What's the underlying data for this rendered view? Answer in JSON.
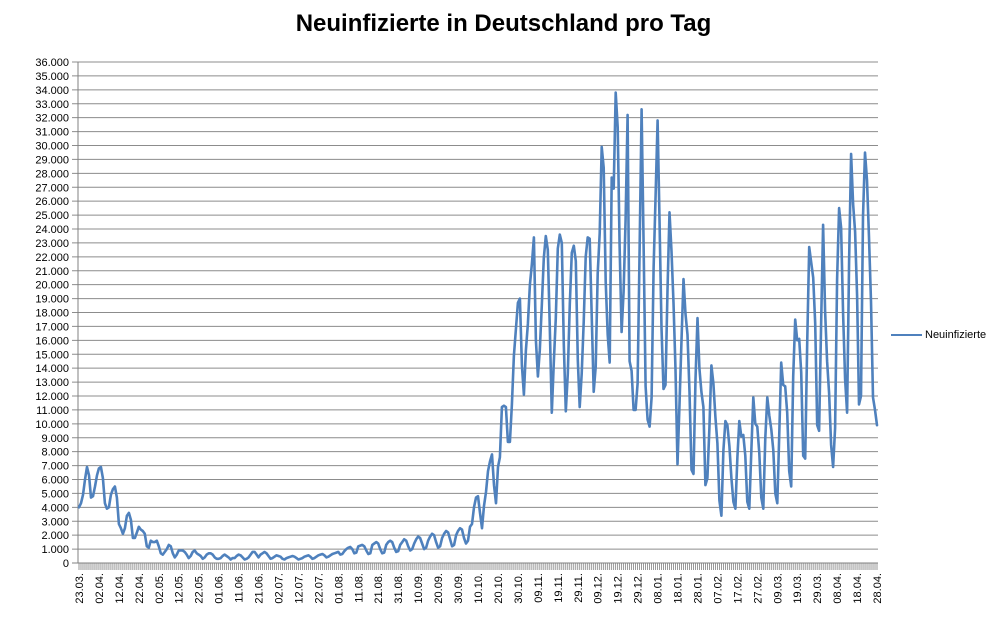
{
  "chart_data": {
    "type": "line",
    "title": "Neuinfizierte in Deutschland pro Tag",
    "legend_position": "right",
    "grid": true,
    "x_label_every": 10,
    "x_tick_labels": [
      "23.03.",
      "02.04.",
      "12.04.",
      "22.04.",
      "02.05.",
      "12.05.",
      "22.05.",
      "01.06.",
      "11.06.",
      "21.06.",
      "02.07.",
      "12.07.",
      "22.07.",
      "01.08.",
      "11.08.",
      "21.08.",
      "31.08.",
      "10.09.",
      "20.09.",
      "30.09.",
      "10.10.",
      "20.10.",
      "30.10.",
      "09.11.",
      "19.11.",
      "29.11.",
      "09.12.",
      "19.12.",
      "29.12.",
      "08.01.",
      "18.01.",
      "28.01.",
      "07.02.",
      "17.02.",
      "27.02.",
      "09.03.",
      "19.03.",
      "29.03.",
      "08.04.",
      "18.04.",
      "28.04."
    ],
    "y_axis": {
      "min": 0,
      "max": 36000,
      "step": 1000
    },
    "y_tick_labels": [
      "0",
      "1.000",
      "2.000",
      "3.000",
      "4.000",
      "5.000",
      "6.000",
      "7.000",
      "8.000",
      "9.000",
      "10.000",
      "11.000",
      "12.000",
      "13.000",
      "14.000",
      "15.000",
      "16.000",
      "17.000",
      "18.000",
      "19.000",
      "20.000",
      "21.000",
      "22.000",
      "23.000",
      "24.000",
      "25.000",
      "26.000",
      "27.000",
      "28.000",
      "29.000",
      "30.000",
      "31.000",
      "32.000",
      "33.000",
      "34.000",
      "35.000",
      "36.000"
    ],
    "colors": {
      "series": "#4F81BD",
      "gridline": "#8C8C8C",
      "axis": "#808080",
      "text": "#000000"
    },
    "series": [
      {
        "name": "Neuinfizierte",
        "color": "#4F81BD",
        "values": [
          4000,
          4300,
          4900,
          6000,
          6900,
          6300,
          4700,
          4800,
          5500,
          6300,
          6800,
          6900,
          6100,
          4300,
          3900,
          4000,
          4900,
          5300,
          5500,
          4700,
          2800,
          2500,
          2100,
          2500,
          3400,
          3600,
          3100,
          1800,
          1800,
          2200,
          2600,
          2400,
          2300,
          2100,
          1200,
          1100,
          1600,
          1500,
          1500,
          1600,
          1200,
          700,
          600,
          800,
          1000,
          1300,
          1200,
          700,
          400,
          600,
          900,
          900,
          900,
          800,
          600,
          350,
          500,
          800,
          900,
          700,
          600,
          500,
          300,
          400,
          600,
          700,
          700,
          600,
          400,
          300,
          300,
          350,
          500,
          600,
          500,
          400,
          250,
          350,
          350,
          500,
          600,
          550,
          400,
          250,
          300,
          400,
          600,
          800,
          800,
          600,
          400,
          600,
          700,
          800,
          700,
          500,
          300,
          350,
          450,
          550,
          500,
          450,
          300,
          250,
          350,
          400,
          450,
          500,
          450,
          350,
          250,
          300,
          350,
          450,
          500,
          550,
          450,
          300,
          350,
          450,
          550,
          600,
          650,
          550,
          400,
          450,
          550,
          650,
          700,
          750,
          800,
          600,
          650,
          850,
          1000,
          1100,
          1150,
          1000,
          700,
          750,
          1200,
          1250,
          1300,
          1200,
          900,
          650,
          700,
          1300,
          1400,
          1500,
          1400,
          1000,
          700,
          750,
          1300,
          1500,
          1600,
          1500,
          1100,
          800,
          850,
          1300,
          1500,
          1700,
          1600,
          1200,
          900,
          1000,
          1400,
          1700,
          1900,
          1800,
          1400,
          1000,
          1100,
          1600,
          1900,
          2100,
          2000,
          1500,
          1100,
          1200,
          1800,
          2100,
          2300,
          2200,
          1700,
          1200,
          1300,
          2000,
          2300,
          2500,
          2400,
          1800,
          1400,
          1600,
          2600,
          2800,
          4000,
          4700,
          4800,
          3600,
          2500,
          4100,
          5100,
          6600,
          7300,
          7800,
          5600,
          4300,
          6900,
          7600,
          11200,
          11300,
          11200,
          8700,
          8700,
          11400,
          14900,
          16800,
          18700,
          19000,
          14200,
          12100,
          15300,
          17200,
          20000,
          21500,
          23400,
          16000,
          13400,
          15300,
          18500,
          21900,
          23500,
          22500,
          16900,
          10800,
          14400,
          17600,
          22600,
          23600,
          23000,
          15700,
          10900,
          13600,
          18600,
          22300,
          22800,
          21700,
          14600,
          11200,
          13600,
          17300,
          22000,
          23400,
          23300,
          17800,
          12300,
          14100,
          20800,
          23700,
          29900,
          28400,
          20200,
          16400,
          14400,
          27700,
          26900,
          33800,
          31300,
          22800,
          16600,
          19500,
          24700,
          32200,
          14500,
          13800,
          11000,
          11000,
          12900,
          22500,
          32600,
          22900,
          12700,
          10300,
          9800,
          11900,
          21200,
          26400,
          31800,
          24700,
          16900,
          12500,
          12800,
          19600,
          25200,
          22400,
          18700,
          13900,
          7100,
          11400,
          16000,
          20400,
          17900,
          16400,
          12300,
          6700,
          6400,
          13200,
          17600,
          14000,
          12300,
          11200,
          5600,
          6100,
          9700,
          14200,
          12900,
          10500,
          8600,
          4500,
          3400,
          8100,
          10200,
          9900,
          8400,
          6100,
          4400,
          3900,
          7600,
          10200,
          9100,
          9200,
          7700,
          4400,
          3900,
          8000,
          11900,
          10000,
          9800,
          7900,
          4700,
          3900,
          9000,
          11900,
          10600,
          9600,
          8100,
          5000,
          4300,
          9100,
          14400,
          12800,
          12700,
          10800,
          6600,
          5500,
          13400,
          17500,
          16000,
          16100,
          13700,
          7700,
          7500,
          15800,
          22700,
          21600,
          20500,
          17200,
          9900,
          9500,
          17100,
          24300,
          18100,
          14500,
          12200,
          8500,
          6900,
          9700,
          20400,
          25500,
          24100,
          17900,
          13200,
          10800,
          21700,
          29400,
          25800,
          23800,
          19200,
          11400,
          12000,
          24900,
          29500,
          27500,
          23400,
          18800,
          11900,
          11000,
          9900
        ]
      }
    ]
  }
}
